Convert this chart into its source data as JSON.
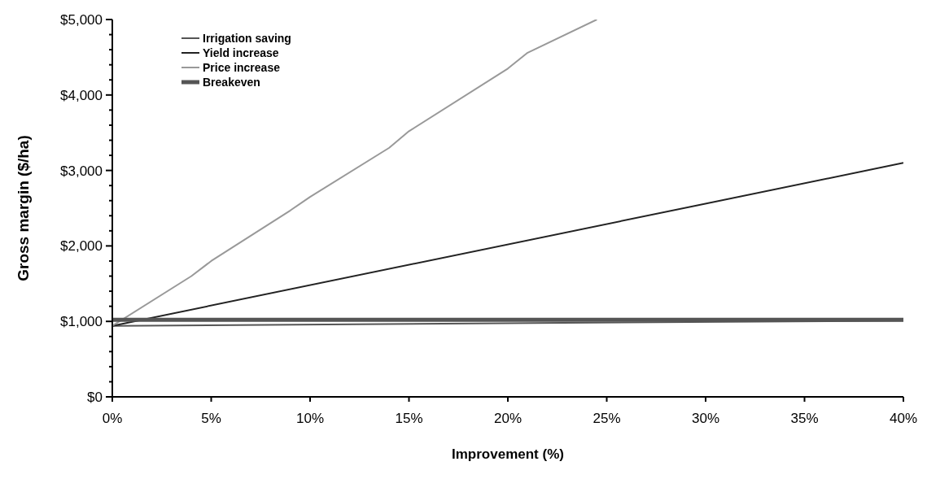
{
  "chart_data": {
    "type": "line",
    "xlabel": "Improvement (%)",
    "ylabel": "Gross margin ($/ha)",
    "xlim": [
      0,
      40
    ],
    "ylim": [
      0,
      5000
    ],
    "xticks": [
      {
        "value": 0,
        "label": "0%"
      },
      {
        "value": 5,
        "label": "5%"
      },
      {
        "value": 10,
        "label": "10%"
      },
      {
        "value": 15,
        "label": "15%"
      },
      {
        "value": 20,
        "label": "20%"
      },
      {
        "value": 25,
        "label": "25%"
      },
      {
        "value": 30,
        "label": "30%"
      },
      {
        "value": 35,
        "label": "35%"
      },
      {
        "value": 40,
        "label": "40%"
      }
    ],
    "yticks": [
      {
        "value": 0,
        "label": "$0"
      },
      {
        "value": 200,
        "label": null
      },
      {
        "value": 400,
        "label": null
      },
      {
        "value": 600,
        "label": null
      },
      {
        "value": 800,
        "label": null
      },
      {
        "value": 1000,
        "label": "$1,000"
      },
      {
        "value": 1200,
        "label": null
      },
      {
        "value": 1400,
        "label": null
      },
      {
        "value": 1600,
        "label": null
      },
      {
        "value": 1800,
        "label": null
      },
      {
        "value": 2000,
        "label": "$2,000"
      },
      {
        "value": 2200,
        "label": null
      },
      {
        "value": 2400,
        "label": null
      },
      {
        "value": 2600,
        "label": null
      },
      {
        "value": 2800,
        "label": null
      },
      {
        "value": 3000,
        "label": "$3,000"
      },
      {
        "value": 3200,
        "label": null
      },
      {
        "value": 3400,
        "label": null
      },
      {
        "value": 3600,
        "label": null
      },
      {
        "value": 3800,
        "label": null
      },
      {
        "value": 4000,
        "label": "$4,000"
      },
      {
        "value": 4200,
        "label": null
      },
      {
        "value": 4400,
        "label": null
      },
      {
        "value": 4600,
        "label": null
      },
      {
        "value": 4800,
        "label": null
      },
      {
        "value": 5000,
        "label": "$5,000"
      }
    ],
    "grid": false,
    "legend": "top left",
    "marker": "none",
    "line_style": "solid",
    "series": [
      {
        "name": "Irrigation saving",
        "color": "#555555",
        "x": [
          0,
          40
        ],
        "values": [
          940,
          1010
        ]
      },
      {
        "name": "Yield increase",
        "color": "#222222",
        "x": [
          0,
          40
        ],
        "values": [
          940,
          3100
        ]
      },
      {
        "name": "Price increase",
        "color": "#999999",
        "x": [
          0,
          4,
          5,
          9,
          10,
          14,
          15,
          20,
          21,
          24.5
        ],
        "values": [
          940,
          1600,
          1800,
          2470,
          2650,
          3300,
          3520,
          4350,
          4560,
          5000
        ]
      },
      {
        "name": "Breakeven",
        "color": "#555555",
        "x": [
          0,
          40
        ],
        "values": [
          1020,
          1020
        ]
      }
    ]
  }
}
